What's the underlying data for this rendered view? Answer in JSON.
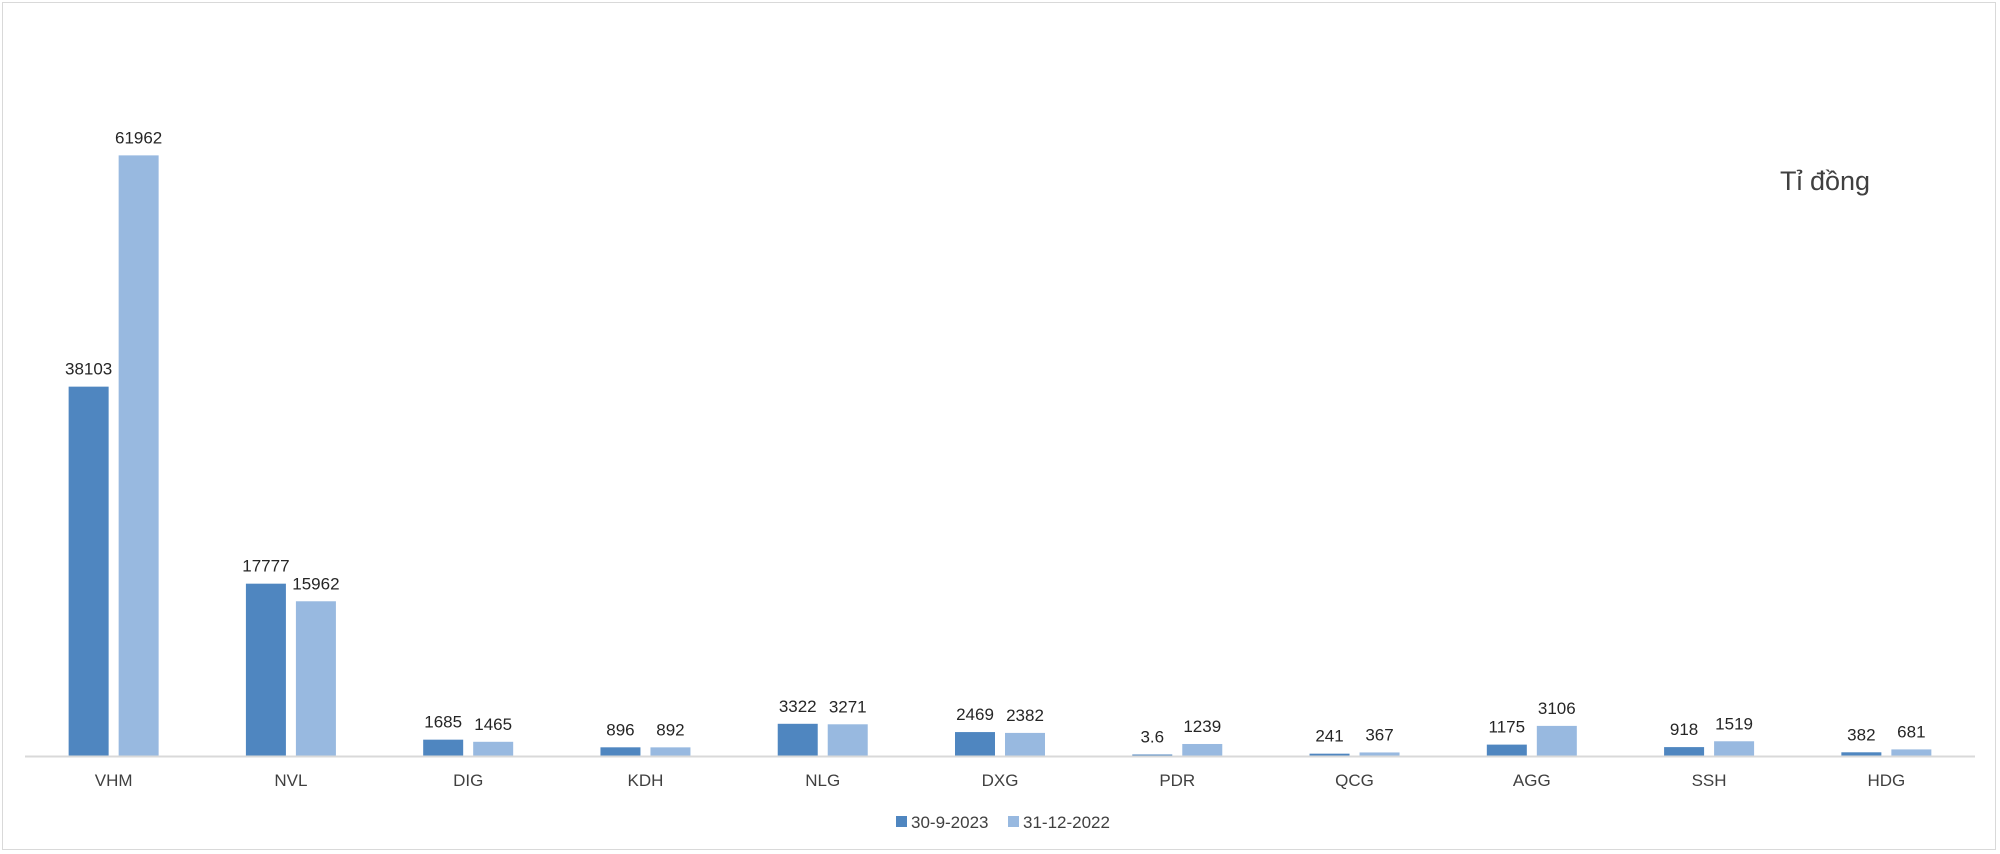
{
  "chart_data": {
    "type": "bar",
    "unit_label": "Tỉ đồng",
    "categories": [
      "VHM",
      "NVL",
      "DIG",
      "KDH",
      "NLG",
      "DXG",
      "PDR",
      "QCG",
      "AGG",
      "SSH",
      "HDG"
    ],
    "series": [
      {
        "name": "30-9-2023",
        "color": "#4f86c0",
        "values": [
          38103,
          17777,
          1685,
          896,
          3322,
          2469,
          3.6,
          241,
          1175,
          918,
          382
        ],
        "labels": [
          "38103",
          "17777",
          "1685",
          "896",
          "3322",
          "2469",
          "3.6",
          "241",
          "1175",
          "918",
          "382"
        ]
      },
      {
        "name": "31-12-2022",
        "color": "#98b9e0",
        "values": [
          61962,
          15962,
          1465,
          892,
          3271,
          2382,
          1239,
          367,
          3106,
          1519,
          681
        ],
        "labels": [
          "61962",
          "15962",
          "1465",
          "892",
          "3271",
          "2382",
          "1239",
          "367",
          "3106",
          "1519",
          "681"
        ]
      }
    ],
    "ylim": [
      0,
      62000
    ],
    "grid": false,
    "legend_position": "bottom-center",
    "axis_color": "#d9d9d9"
  }
}
